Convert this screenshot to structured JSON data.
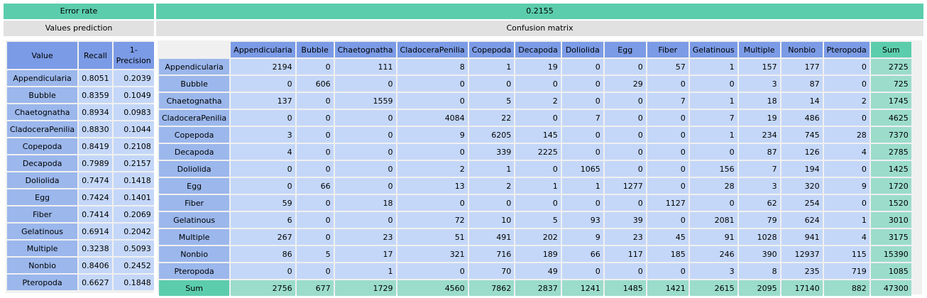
{
  "header": {
    "error_label": "Error rate",
    "error_value": "0.2155",
    "left_title": "Values prediction",
    "right_title": "Confusion matrix"
  },
  "values_prediction": {
    "columns": [
      "Value",
      "Recall",
      "1-\nPrecision"
    ],
    "rows": [
      {
        "label": "Appendicularia",
        "recall": "0.8051",
        "one_minus_precision": "0.2039"
      },
      {
        "label": "Bubble",
        "recall": "0.8359",
        "one_minus_precision": "0.1049"
      },
      {
        "label": "Chaetognatha",
        "recall": "0.8934",
        "one_minus_precision": "0.0983"
      },
      {
        "label": "CladoceraPenilia",
        "recall": "0.8830",
        "one_minus_precision": "0.1044"
      },
      {
        "label": "Copepoda",
        "recall": "0.8419",
        "one_minus_precision": "0.2108"
      },
      {
        "label": "Decapoda",
        "recall": "0.7989",
        "one_minus_precision": "0.2157"
      },
      {
        "label": "Doliolida",
        "recall": "0.7474",
        "one_minus_precision": "0.1418"
      },
      {
        "label": "Egg",
        "recall": "0.7424",
        "one_minus_precision": "0.1401"
      },
      {
        "label": "Fiber",
        "recall": "0.7414",
        "one_minus_precision": "0.2069"
      },
      {
        "label": "Gelatinous",
        "recall": "0.6914",
        "one_minus_precision": "0.2042"
      },
      {
        "label": "Multiple",
        "recall": "0.3238",
        "one_minus_precision": "0.5093"
      },
      {
        "label": "Nonbio",
        "recall": "0.8406",
        "one_minus_precision": "0.2452"
      },
      {
        "label": "Pteropoda",
        "recall": "0.6627",
        "one_minus_precision": "0.1848"
      }
    ]
  },
  "confusion_matrix": {
    "columns": [
      "Appendicularia",
      "Bubble",
      "Chaetognatha",
      "CladoceraPenilia",
      "Copepoda",
      "Decapoda",
      "Doliolida",
      "Egg",
      "Fiber",
      "Gelatinous",
      "Multiple",
      "Nonbio",
      "Pteropoda",
      "Sum"
    ],
    "rows": [
      {
        "label": "Appendicularia",
        "values": [
          "2194",
          "0",
          "111",
          "8",
          "1",
          "19",
          "0",
          "0",
          "57",
          "1",
          "157",
          "177",
          "0",
          "2725"
        ]
      },
      {
        "label": "Bubble",
        "values": [
          "0",
          "606",
          "0",
          "0",
          "0",
          "0",
          "0",
          "29",
          "0",
          "0",
          "3",
          "87",
          "0",
          "725"
        ]
      },
      {
        "label": "Chaetognatha",
        "values": [
          "137",
          "0",
          "1559",
          "0",
          "5",
          "2",
          "0",
          "0",
          "7",
          "1",
          "18",
          "14",
          "2",
          "1745"
        ]
      },
      {
        "label": "CladoceraPenilia",
        "values": [
          "0",
          "0",
          "0",
          "4084",
          "22",
          "0",
          "7",
          "0",
          "0",
          "7",
          "19",
          "486",
          "0",
          "4625"
        ]
      },
      {
        "label": "Copepoda",
        "values": [
          "3",
          "0",
          "0",
          "9",
          "6205",
          "145",
          "0",
          "0",
          "0",
          "1",
          "234",
          "745",
          "28",
          "7370"
        ]
      },
      {
        "label": "Decapoda",
        "values": [
          "4",
          "0",
          "0",
          "0",
          "339",
          "2225",
          "0",
          "0",
          "0",
          "0",
          "87",
          "126",
          "4",
          "2785"
        ]
      },
      {
        "label": "Doliolida",
        "values": [
          "0",
          "0",
          "0",
          "2",
          "1",
          "0",
          "1065",
          "0",
          "0",
          "156",
          "7",
          "194",
          "0",
          "1425"
        ]
      },
      {
        "label": "Egg",
        "values": [
          "0",
          "66",
          "0",
          "13",
          "2",
          "1",
          "1",
          "1277",
          "0",
          "28",
          "3",
          "320",
          "9",
          "1720"
        ]
      },
      {
        "label": "Fiber",
        "values": [
          "59",
          "0",
          "18",
          "0",
          "0",
          "0",
          "0",
          "0",
          "1127",
          "0",
          "62",
          "254",
          "0",
          "1520"
        ]
      },
      {
        "label": "Gelatinous",
        "values": [
          "6",
          "0",
          "0",
          "72",
          "10",
          "5",
          "93",
          "39",
          "0",
          "2081",
          "79",
          "624",
          "1",
          "3010"
        ]
      },
      {
        "label": "Multiple",
        "values": [
          "267",
          "0",
          "23",
          "51",
          "491",
          "202",
          "9",
          "23",
          "45",
          "91",
          "1028",
          "941",
          "4",
          "3175"
        ]
      },
      {
        "label": "Nonbio",
        "values": [
          "86",
          "5",
          "17",
          "321",
          "716",
          "189",
          "66",
          "117",
          "185",
          "246",
          "390",
          "12937",
          "115",
          "15390"
        ]
      },
      {
        "label": "Pteropoda",
        "values": [
          "0",
          "0",
          "1",
          "0",
          "70",
          "49",
          "0",
          "0",
          "0",
          "3",
          "8",
          "235",
          "719",
          "1085"
        ]
      }
    ],
    "sum_row": {
      "label": "Sum",
      "values": [
        "2756",
        "677",
        "1729",
        "4560",
        "7862",
        "2837",
        "1241",
        "1485",
        "1421",
        "2615",
        "2095",
        "17140",
        "882",
        "47300"
      ]
    }
  }
}
